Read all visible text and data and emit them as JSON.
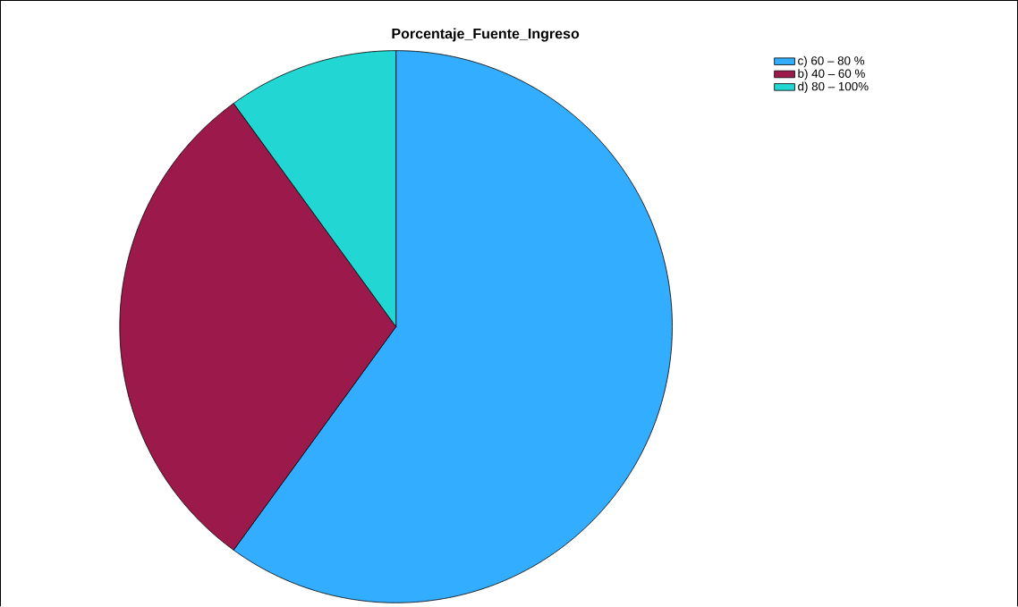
{
  "chart_data": {
    "type": "pie",
    "title": "Porcentaje_Fuente_Ingreso",
    "categories": [
      "c) 60 – 80 %",
      "b) 40 – 60 %",
      "d) 80 – 100%"
    ],
    "values": [
      60,
      30,
      10
    ],
    "colors": [
      "#33adff",
      "#9c194b",
      "#22d6d3"
    ],
    "legend": "top right"
  }
}
